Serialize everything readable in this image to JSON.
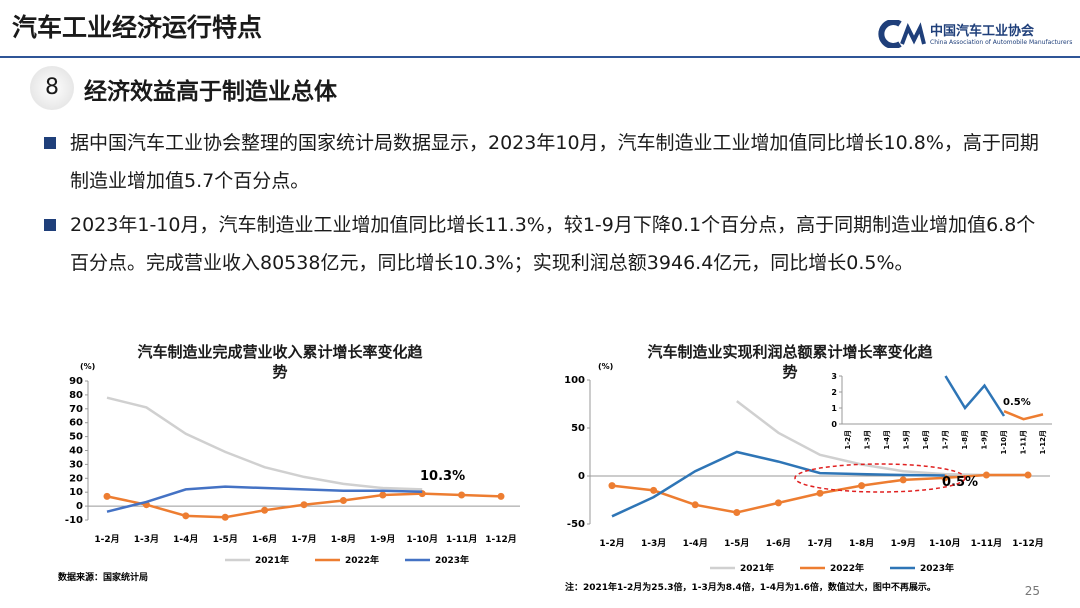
{
  "header": {
    "title": "汽车工业经济运行特点",
    "logo_name": "中国汽车工业协会",
    "logo_subtitle": "China Association of Automobile Manufacturers"
  },
  "section": {
    "number": "8",
    "title": "经济效益高于制造业总体"
  },
  "bullets": [
    "据中国汽车工业协会整理的国家统计局数据显示，2023年10月，汽车制造业工业增加值同比增长10.8%，高于同期制造业增加值5.7个百分点。",
    "2023年1-10月，汽车制造业工业增加值同比增长11.3%，较1-9月下降0.1个百分点，高于同期制造业增加值6.8个百分点。完成营业收入80538亿元，同比增长10.3%；实现利润总额3946.4亿元，同比增长0.5%。"
  ],
  "page_number": "25",
  "chart_data": [
    {
      "type": "line",
      "title": "汽车制造业完成营业收入累计增长率变化趋势",
      "y_label": "(%)",
      "annotation": "10.3%",
      "source": "数据来源：国家统计局",
      "categories": [
        "1-2月",
        "1-3月",
        "1-4月",
        "1-5月",
        "1-6月",
        "1-7月",
        "1-8月",
        "1-9月",
        "1-10月",
        "1-11月",
        "1-12月"
      ],
      "ylim": [
        -10,
        90
      ],
      "yticks": [
        -10,
        0,
        10,
        20,
        30,
        40,
        50,
        60,
        70,
        80,
        90
      ],
      "series": [
        {
          "name": "2021年",
          "color": "#d0d0d0",
          "values": [
            78,
            71,
            52,
            39,
            28,
            21,
            16,
            13,
            12,
            null,
            null
          ]
        },
        {
          "name": "2022年",
          "color": "#ed7d31",
          "values": [
            7,
            1,
            -7,
            -8,
            -3,
            1,
            4,
            8,
            9,
            8,
            7
          ]
        },
        {
          "name": "2023年",
          "color": "#4472c4",
          "values": [
            -4,
            3,
            12,
            14,
            13,
            12,
            11,
            11,
            10.3,
            null,
            null
          ]
        }
      ]
    },
    {
      "type": "line",
      "title": "汽车制造业实现利润总额累计增长率变化趋势",
      "y_label": "(%)",
      "annotation": "0.5%",
      "note": "注：2021年1-2月为25.3倍，1-3月为8.4倍，1-4月为1.6倍，数值过大，图中不再展示。",
      "categories": [
        "1-2月",
        "1-3月",
        "1-4月",
        "1-5月",
        "1-6月",
        "1-7月",
        "1-8月",
        "1-9月",
        "1-10月",
        "1-11月",
        "1-12月"
      ],
      "ylim": [
        -50,
        100
      ],
      "yticks": [
        -50,
        0,
        50,
        100
      ],
      "series": [
        {
          "name": "2021年",
          "color": "#d0d0d0",
          "values": [
            null,
            null,
            null,
            78,
            45,
            22,
            12,
            5,
            2,
            1,
            1
          ]
        },
        {
          "name": "2022年",
          "color": "#ed7d31",
          "values": [
            -10,
            -15,
            -30,
            -38,
            -28,
            -18,
            -10,
            -4,
            -2,
            1,
            1
          ]
        },
        {
          "name": "2023年",
          "color": "#2e75b6",
          "values": [
            -42,
            -22,
            5,
            25,
            15,
            3,
            2,
            1,
            0.5,
            null,
            null
          ]
        }
      ]
    },
    {
      "type": "line",
      "annotation": "0.5%",
      "categories": [
        "1-2月",
        "1-3月",
        "1-4月",
        "1-5月",
        "1-6月",
        "1-7月",
        "1-8月",
        "1-9月",
        "1-10月",
        "1-11月",
        "1-12月"
      ],
      "ylim": [
        0,
        3
      ],
      "yticks": [
        0,
        1,
        2,
        3
      ],
      "series": [
        {
          "color": "#ed7d31",
          "values": [
            null,
            null,
            null,
            null,
            null,
            null,
            null,
            null,
            0.8,
            0.3,
            0.6
          ]
        },
        {
          "color": "#2e75b6",
          "values": [
            null,
            null,
            null,
            null,
            null,
            3,
            1,
            2.4,
            0.5,
            null,
            null
          ]
        }
      ]
    }
  ]
}
